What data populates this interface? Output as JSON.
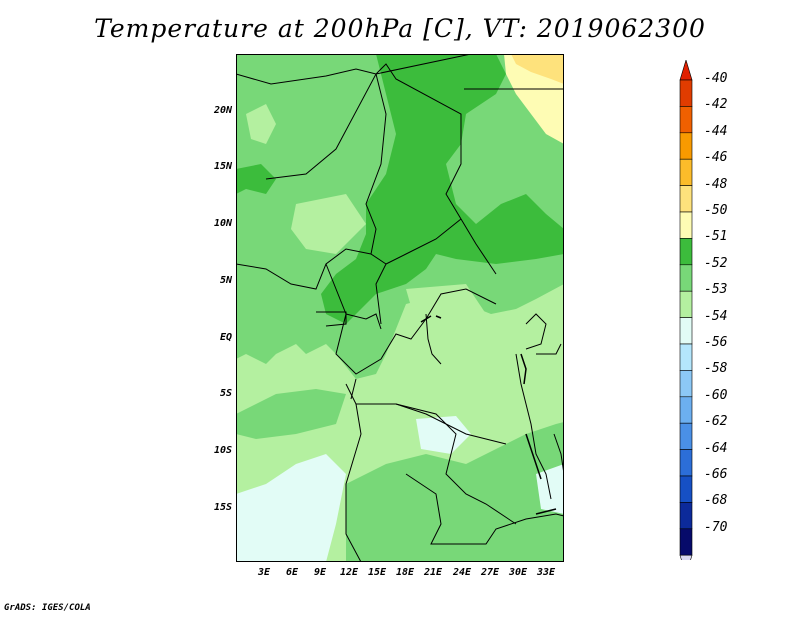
{
  "title": "Temperature at 200hPa [C], VT: 2019062300",
  "credit": "GrADS: IGES/COLA",
  "map": {
    "variable": "Temperature at 200hPa",
    "units": "C",
    "valid_time": "2019062300",
    "lat_labels": [
      "20N",
      "15N",
      "10N",
      "5N",
      "EQ",
      "5S",
      "10S",
      "15S"
    ],
    "lon_labels": [
      "3E",
      "6E",
      "9E",
      "12E",
      "15E",
      "18E",
      "21E",
      "24E",
      "27E",
      "30E",
      "33E"
    ]
  },
  "colorbar": {
    "labels": [
      "-40",
      "-42",
      "-44",
      "-46",
      "-48",
      "-50",
      "-51",
      "-52",
      "-53",
      "-54",
      "-56",
      "-58",
      "-60",
      "-62",
      "-64",
      "-66",
      "-68",
      "-70"
    ],
    "colors": [
      "#a00000",
      "#e03c00",
      "#f06000",
      "#f89a00",
      "#fcbc2a",
      "#fee27c",
      "#fefcb4",
      "#3cbc3c",
      "#78d878",
      "#b4f0a0",
      "#e2fcf6",
      "#b4e6fc",
      "#8cc8f6",
      "#6caff0",
      "#4a90e6",
      "#2c6ed8",
      "#1650c4",
      "#0c2a9a",
      "#060a6a"
    ],
    "top_arrow_color": "#e02000",
    "bottom_arrow_color": "#d8d8f0"
  }
}
